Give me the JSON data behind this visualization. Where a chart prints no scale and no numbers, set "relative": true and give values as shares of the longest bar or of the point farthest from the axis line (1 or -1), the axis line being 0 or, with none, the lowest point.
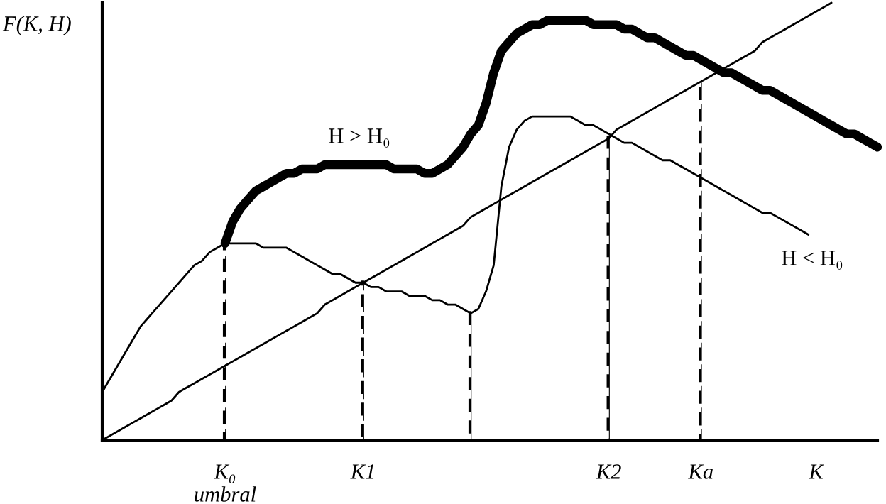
{
  "chart_data": {
    "type": "line",
    "relative": true,
    "ylabel": "F(K, H)",
    "categories": [
      null,
      null,
      null,
      null,
      null,
      null,
      null,
      null,
      null,
      null,
      null,
      null,
      null,
      null,
      null,
      null,
      "K₀\numbral",
      null,
      null,
      null,
      null,
      null,
      null,
      null,
      null,
      null,
      null,
      null,
      null,
      null,
      null,
      null,
      null,
      null,
      "K1",
      null,
      null,
      null,
      null,
      null,
      null,
      null,
      null,
      null,
      null,
      null,
      null,
      null,
      null,
      null,
      null,
      null,
      null,
      null,
      null,
      null,
      null,
      null,
      null,
      null,
      null,
      null,
      null,
      null,
      null,
      null,
      "K2",
      null,
      null,
      null,
      null,
      null,
      null,
      null,
      null,
      null,
      null,
      null,
      "Ka",
      null,
      null,
      null,
      null,
      null,
      null,
      null,
      null,
      null,
      null,
      null,
      null,
      null,
      null,
      "K",
      null,
      null,
      null,
      null,
      null,
      null,
      null,
      null
    ],
    "tick_labels": "x",
    "grid": false,
    "legend": false,
    "marker": "none",
    "line_style": "solid",
    "series": [
      {
        "color": "#000000",
        "values": [
          0,
          0.01,
          0.02,
          0.03,
          0.04,
          0.05,
          0.06,
          0.07,
          0.08,
          0.09,
          0.11,
          0.12,
          0.13,
          0.14,
          0.15,
          0.16,
          0.17,
          0.18,
          0.19,
          0.2,
          0.21,
          0.22,
          0.23,
          0.24,
          0.25,
          0.26,
          0.27,
          0.28,
          0.29,
          0.31,
          0.32,
          0.33,
          0.34,
          0.35,
          0.36,
          0.37,
          0.38,
          0.39,
          0.4,
          0.41,
          0.42,
          0.43,
          0.44,
          0.45,
          0.46,
          0.47,
          0.48,
          0.49,
          0.51,
          0.52,
          0.53,
          0.54,
          0.55,
          0.56,
          0.57,
          0.58,
          0.59,
          0.6,
          0.61,
          0.62,
          0.63,
          0.64,
          0.65,
          0.66,
          0.67,
          0.68,
          0.69,
          0.71,
          0.72,
          0.73,
          0.74,
          0.75,
          0.76,
          0.77,
          0.78,
          0.79,
          0.8,
          0.81,
          0.82,
          0.83,
          0.84,
          0.85,
          0.86,
          0.87,
          0.88,
          0.89,
          0.91,
          0.92,
          0.93,
          0.94,
          0.95,
          0.96,
          0.97,
          0.98,
          0.99,
          1,
          null,
          null,
          null,
          null,
          null,
          null
        ]
      },
      {
        "color": "#000000",
        "values": [
          null,
          null,
          null,
          null,
          null,
          null,
          null,
          null,
          null,
          null,
          null,
          null,
          null,
          null,
          null,
          null,
          0.45,
          0.5,
          0.53,
          0.55,
          0.57,
          0.58,
          0.59,
          0.6,
          0.61,
          0.61,
          0.62,
          0.62,
          0.62,
          0.63,
          0.63,
          0.63,
          0.63,
          0.63,
          0.63,
          0.63,
          0.63,
          0.63,
          0.62,
          0.62,
          0.62,
          0.62,
          0.61,
          0.61,
          0.62,
          0.63,
          0.65,
          0.67,
          0.7,
          0.72,
          0.77,
          0.84,
          0.89,
          0.91,
          0.93,
          0.94,
          0.95,
          0.95,
          0.96,
          0.96,
          0.96,
          0.96,
          0.96,
          0.96,
          0.95,
          0.95,
          0.95,
          0.95,
          0.94,
          0.94,
          0.93,
          0.92,
          0.92,
          0.91,
          0.9,
          0.89,
          0.88,
          0.88,
          0.87,
          0.86,
          0.85,
          0.84,
          0.84,
          0.83,
          0.82,
          0.81,
          0.8,
          0.8,
          0.79,
          0.78,
          0.77,
          0.76,
          0.75,
          0.74,
          0.73,
          0.72,
          0.71,
          0.7,
          0.7,
          0.69,
          0.68,
          0.67
        ]
      },
      {
        "color": "#000000",
        "values": [
          0.11,
          0.14,
          0.17,
          0.2,
          0.23,
          0.26,
          0.28,
          0.3,
          0.32,
          0.34,
          0.36,
          0.38,
          0.4,
          0.41,
          0.43,
          0.44,
          0.45,
          0.45,
          0.45,
          0.45,
          0.45,
          0.44,
          0.44,
          0.44,
          0.44,
          0.43,
          0.42,
          0.41,
          0.4,
          0.39,
          0.38,
          0.38,
          0.37,
          0.36,
          0.36,
          0.35,
          0.35,
          0.34,
          0.34,
          0.34,
          0.33,
          0.33,
          0.33,
          0.32,
          0.32,
          0.31,
          0.31,
          0.3,
          0.29,
          0.3,
          0.34,
          0.4,
          0.58,
          0.67,
          0.71,
          0.73,
          0.74,
          0.74,
          0.74,
          0.74,
          0.74,
          0.74,
          0.73,
          0.72,
          0.72,
          0.71,
          0.7,
          0.69,
          0.68,
          0.68,
          0.67,
          0.66,
          0.65,
          0.64,
          0.64,
          0.63,
          0.62,
          0.61,
          0.6,
          0.59,
          0.58,
          0.57,
          0.56,
          0.55,
          0.54,
          0.53,
          0.52,
          0.52,
          0.51,
          0.5,
          0.49,
          0.48,
          0.47,
          null,
          null,
          null,
          null,
          null,
          null,
          null,
          null,
          null
        ]
      },
      {
        "type": "bar",
        "color": "#000000",
        "line_style": "dashed",
        "values": [
          null,
          null,
          null,
          null,
          null,
          null,
          null,
          null,
          null,
          null,
          null,
          null,
          null,
          null,
          null,
          null,
          0.45,
          null,
          null,
          null,
          null,
          null,
          null,
          null,
          null,
          null,
          null,
          null,
          null,
          null,
          null,
          null,
          null,
          null,
          0.36,
          null,
          null,
          null,
          null,
          null,
          null,
          null,
          null,
          null,
          null,
          null,
          null,
          null,
          0.29,
          null,
          null,
          null,
          null,
          null,
          null,
          null,
          null,
          null,
          null,
          null,
          null,
          null,
          null,
          null,
          null,
          null,
          0.69,
          null,
          null,
          null,
          null,
          null,
          null,
          null,
          null,
          null,
          null,
          null,
          0.82,
          null,
          null,
          null,
          null,
          null,
          null,
          null,
          null,
          null,
          null,
          null,
          null,
          null,
          null,
          null,
          null,
          null,
          null,
          null,
          null,
          null,
          null,
          null
        ]
      }
    ],
    "annotations": [
      "H > H₀",
      "H < H₀"
    ]
  }
}
